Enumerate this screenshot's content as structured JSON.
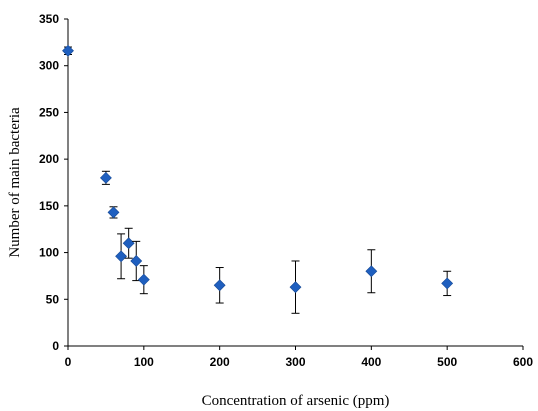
{
  "chart_data": {
    "type": "scatter",
    "title": "",
    "xlabel": "Concentration of arsenic (ppm)",
    "ylabel": "Number of main bacteria",
    "xlim": [
      0,
      600
    ],
    "ylim": [
      0,
      350
    ],
    "xticks": [
      0,
      100,
      200,
      300,
      400,
      500,
      600
    ],
    "yticks": [
      0,
      50,
      100,
      150,
      200,
      250,
      300,
      350
    ],
    "grid": false,
    "legend": "none",
    "marker": "diamond",
    "color": "#1f5fbf",
    "series": [
      {
        "points": [
          {
            "x": 0,
            "y": 316,
            "err": 4
          },
          {
            "x": 50,
            "y": 180,
            "err": 7
          },
          {
            "x": 60,
            "y": 143,
            "err": 6
          },
          {
            "x": 70,
            "y": 96,
            "err": 24
          },
          {
            "x": 80,
            "y": 110,
            "err": 16
          },
          {
            "x": 90,
            "y": 91,
            "err": 21
          },
          {
            "x": 100,
            "y": 71,
            "err": 15
          },
          {
            "x": 200,
            "y": 65,
            "err": 19
          },
          {
            "x": 300,
            "y": 63,
            "err": 28
          },
          {
            "x": 400,
            "y": 80,
            "err": 23
          },
          {
            "x": 500,
            "y": 67,
            "err": 13
          }
        ]
      }
    ]
  }
}
